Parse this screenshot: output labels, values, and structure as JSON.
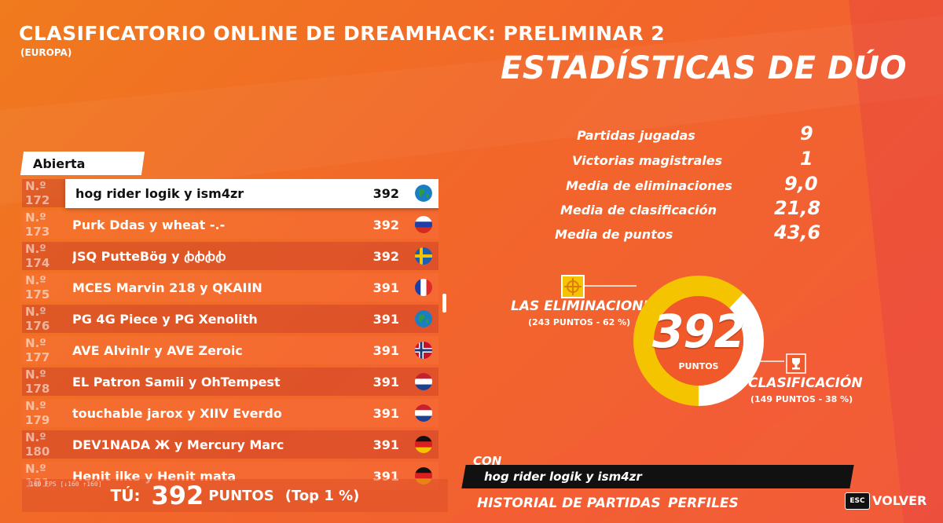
{
  "header": {
    "title": "CLASIFICATORIO ONLINE DE DREAMHACK: PRELIMINAR 2",
    "subtitle": "(EUROPA)",
    "section_title": "ESTADÍSTICAS DE DÚO"
  },
  "leaderboard": {
    "tab": "Abierta",
    "rows": [
      {
        "rank": "N.º 172",
        "team": "hog rider logik y ism4zr",
        "points": "392",
        "flag": "globe-icon",
        "selected": true
      },
      {
        "rank": "N.º 173",
        "team": "Purk Ddas y wheat -.-",
        "points": "392",
        "flag": "russia-flag-icon"
      },
      {
        "rank": "N.º 174",
        "team": "JSQ PutteBög y ꞗꞗꞗꞗ",
        "points": "392",
        "flag": "sweden-flag-icon"
      },
      {
        "rank": "N.º 175",
        "team": "MCES Marvin 218 y QKAIIN",
        "points": "391",
        "flag": "france-flag-icon"
      },
      {
        "rank": "N.º 176",
        "team": "PG 4G Piece y PG Xenolith",
        "points": "391",
        "flag": "globe-icon"
      },
      {
        "rank": "N.º 177",
        "team": "AVE Alvinlr y AVE Zeroic",
        "points": "391",
        "flag": "norway-flag-icon"
      },
      {
        "rank": "N.º 178",
        "team": "EL Patron Samii y OhTempest",
        "points": "391",
        "flag": "netherlands-flag-icon"
      },
      {
        "rank": "N.º 179",
        "team": "touchable jarox y XIIV Everdo",
        "points": "391",
        "flag": "netherlands-flag-icon"
      },
      {
        "rank": "N.º 180",
        "team": "DEV1NADA Ж y Mercury Marc",
        "points": "391",
        "flag": "germany-flag-icon"
      },
      {
        "rank": "N.º 181",
        "team": "Henit ilke y Henit mata",
        "points": "391",
        "flag": "germany-flag-icon"
      }
    ]
  },
  "you": {
    "label": "TÚ:",
    "points": "392",
    "unit": "PUNTOS",
    "top": "(Top 1 %)",
    "fps": "160 FPS [↓160 ↑160]"
  },
  "stats": [
    {
      "label": "Partidas jugadas",
      "value": "9"
    },
    {
      "label": "Victorias magistrales",
      "value": "1"
    },
    {
      "label": "Media de eliminaciones",
      "value": "9,0"
    },
    {
      "label": "Media de clasificación",
      "value": "21,8"
    },
    {
      "label": "Media de puntos",
      "value": "43,6"
    }
  ],
  "breakdown": {
    "total": "392",
    "unit": "PUNTOS",
    "eliminations_label": "LAS ELIMINACIONES",
    "eliminations_sub": "(243 PUNTOS - 62 %)",
    "eliminations_fraction": 0.62,
    "placement_label": "CLASIFICACIÓN",
    "placement_sub": "(149 PUNTOS - 38 %)",
    "colors": {
      "eliminations": "#f5c400",
      "placement": "#ffffff"
    }
  },
  "team_card": {
    "con_label": "CON",
    "team_name": "hog rider logik y ism4zr"
  },
  "nav": {
    "history": "HISTORIAL DE PARTIDAS",
    "profiles": "PERFILES",
    "esc_key": "ESC",
    "back": "VOLVER"
  }
}
